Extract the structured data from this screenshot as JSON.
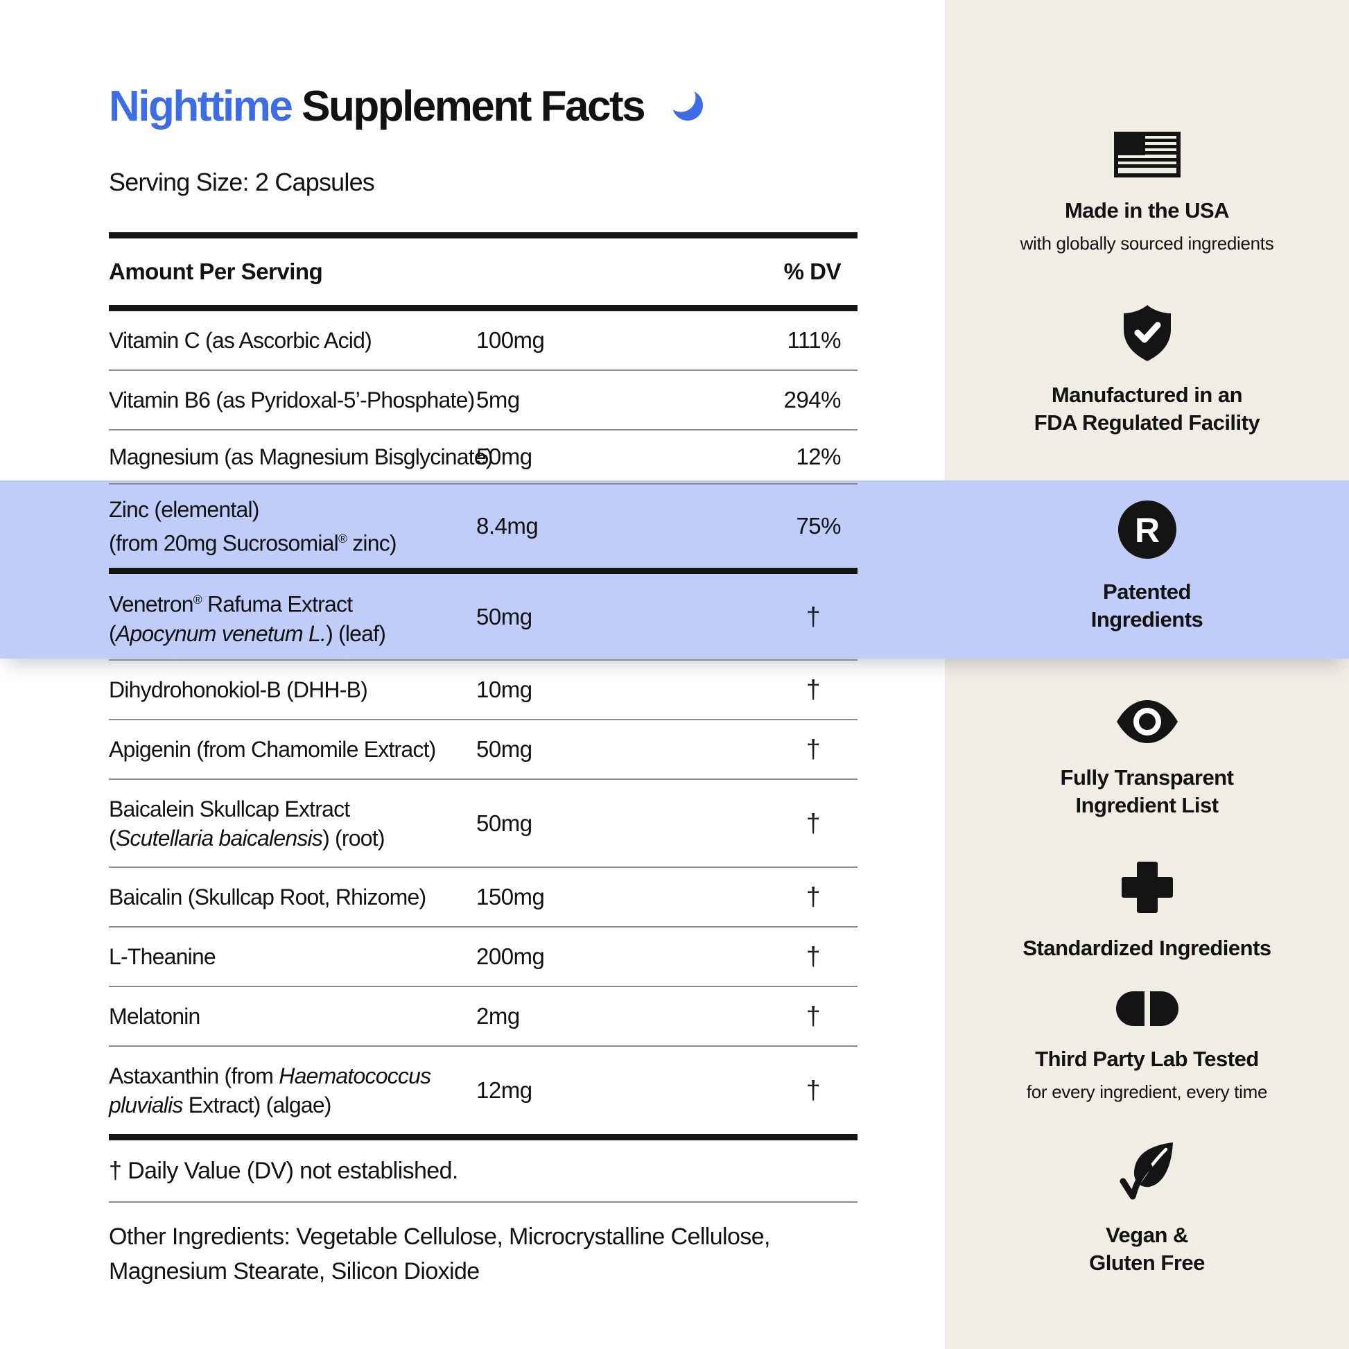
{
  "page": {
    "title": {
      "highlight": "Nighttime",
      "rest": "Supplement Facts",
      "icon": "crescent-moon"
    },
    "serving_size": "Serving Size: 2 Capsules",
    "colors": {
      "accent": "#3D6CE7",
      "highlight_band": "#BFCDF8",
      "sidebar_bg": "#F0EDE5",
      "ink": "#121212"
    }
  },
  "table": {
    "header": {
      "amount_col": "Amount Per Serving",
      "dv_col": "% DV"
    },
    "rows": [
      {
        "name": [
          {
            "t": "Vitamin C (as Ascorbic Acid)"
          }
        ],
        "amount": "100mg",
        "dv": "111%"
      },
      {
        "name": [
          {
            "t": "Vitamin B6 (as Pyridoxal-5’-Phosphate)"
          }
        ],
        "amount": "5mg",
        "dv": "294%"
      },
      {
        "name": [
          {
            "t": "Magnesium (as Magnesium Bisglycinate)"
          }
        ],
        "amount": "50mg",
        "dv": "12%"
      },
      {
        "name": [
          {
            "t": "Zinc (elemental)"
          },
          {
            "br": true
          },
          {
            "t": "(from 20mg Sucrosomial"
          },
          {
            "t": "®",
            "sup": true
          },
          {
            "t": " zinc)"
          }
        ],
        "amount": "8.4mg",
        "dv": "75%",
        "highlight": true
      },
      {
        "name": [
          {
            "t": "Venetron"
          },
          {
            "t": "®",
            "sup": true
          },
          {
            "t": " Rafuma Extract"
          },
          {
            "br": true
          },
          {
            "t": "("
          },
          {
            "t": "Apocynum venetum L.",
            "it": true
          },
          {
            "t": ") (leaf)"
          }
        ],
        "amount": "50mg",
        "dv": "†",
        "highlight": true
      },
      {
        "name": [
          {
            "t": "Dihydrohonokiol-B (DHH-B)"
          }
        ],
        "amount": "10mg",
        "dv": "†"
      },
      {
        "name": [
          {
            "t": "Apigenin (from Chamomile Extract)"
          }
        ],
        "amount": "50mg",
        "dv": "†"
      },
      {
        "name": [
          {
            "t": "Baicalein Skullcap Extract"
          },
          {
            "br": true
          },
          {
            "t": "("
          },
          {
            "t": "Scutellaria baicalensis",
            "it": true
          },
          {
            "t": ") (root)"
          }
        ],
        "amount": "50mg",
        "dv": "†"
      },
      {
        "name": [
          {
            "t": "Baicalin (Skullcap Root, Rhizome)"
          }
        ],
        "amount": "150mg",
        "dv": "†"
      },
      {
        "name": [
          {
            "t": "L-Theanine"
          }
        ],
        "amount": "200mg",
        "dv": "†"
      },
      {
        "name": [
          {
            "t": "Melatonin"
          }
        ],
        "amount": "2mg",
        "dv": "†"
      },
      {
        "name": [
          {
            "t": "Astaxanthin (from "
          },
          {
            "t": "Haematococcus",
            "it": true
          },
          {
            "br": true
          },
          {
            "t": "pluvialis",
            "it": true
          },
          {
            "t": " Extract) (algae)"
          }
        ],
        "amount": "12mg",
        "dv": "†"
      }
    ],
    "footnote": "†  Daily Value (DV) not established.",
    "other_ingredients": "Other Ingredients: Vegetable Cellulose, Microcrystalline Cellulose, Magnesium Stearate, Silicon Dioxide"
  },
  "sidebar": {
    "badges": [
      {
        "icon": "usa-flag",
        "title": "Made in the USA",
        "subtitle": "with globally sourced ingredients"
      },
      {
        "icon": "shield-check",
        "title": "Manufactured in an\nFDA Regulated Facility"
      },
      {
        "icon": "registered-trademark",
        "title": "Patented\nIngredients",
        "highlighted": true
      },
      {
        "icon": "eye",
        "title": "Fully Transparent\nIngredient List"
      },
      {
        "icon": "plus-cross",
        "title": "Standardized Ingredients"
      },
      {
        "icon": "capsule-pill",
        "title": "Third Party Lab Tested",
        "subtitle": "for every ingredient, every time"
      },
      {
        "icon": "leaf-check",
        "title": "Vegan &\nGluten Free"
      }
    ]
  }
}
